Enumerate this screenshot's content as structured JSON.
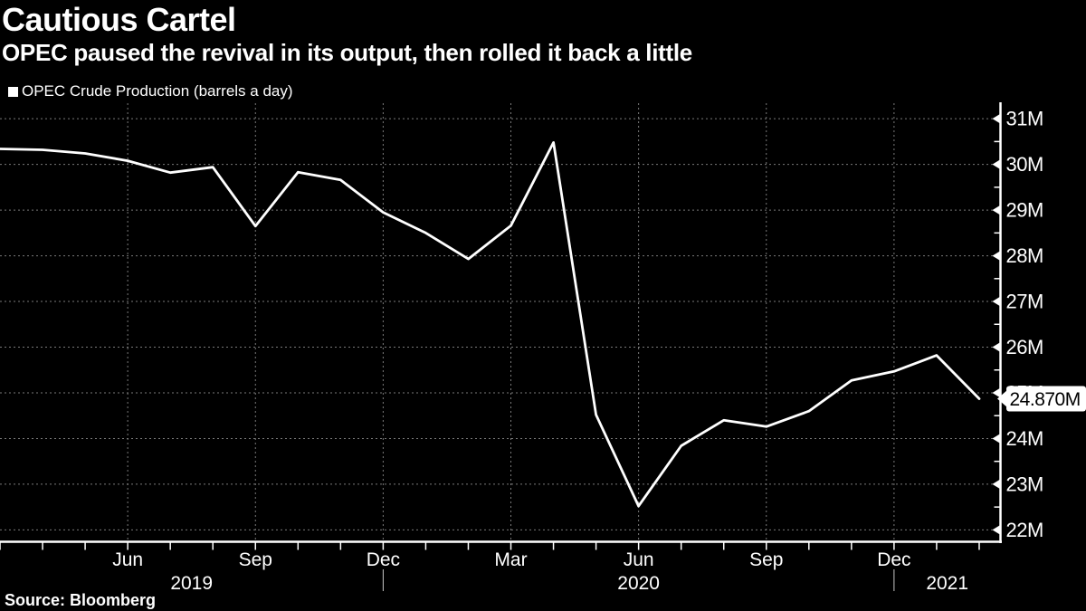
{
  "header": {
    "title": "Cautious Cartel",
    "subtitle": "OPEC paused the revival in its output, then rolled it back a little"
  },
  "legend": {
    "label": "OPEC Crude Production (barrels a day)",
    "marker": "square",
    "marker_color": "#ffffff"
  },
  "source": "Source: Bloomberg",
  "colors": {
    "background": "#000000",
    "text": "#ffffff",
    "line": "#ffffff",
    "grid": "#7a7a7a",
    "axis": "#ffffff",
    "tick": "#ffffff",
    "year_divider": "#c8c8c8",
    "callout_bg": "#ffffff",
    "callout_text": "#000000"
  },
  "chart_data": {
    "type": "line",
    "title": "Cautious Cartel",
    "subtitle": "OPEC paused the revival in its output, then rolled it back a little",
    "unit": "million barrels a day",
    "grid": true,
    "legend_position": "top-left",
    "series": [
      {
        "name": "OPEC Crude Production (barrels a day)",
        "x": [
          "Mar 2019",
          "Apr 2019",
          "May 2019",
          "Jun 2019",
          "Jul 2019",
          "Aug 2019",
          "Sep 2019",
          "Oct 2019",
          "Nov 2019",
          "Dec 2019",
          "Jan 2020",
          "Feb 2020",
          "Mar 2020",
          "Apr 2020",
          "May 2020",
          "Jun 2020",
          "Jul 2020",
          "Aug 2020",
          "Sep 2020",
          "Oct 2020",
          "Nov 2020",
          "Dec 2020",
          "Jan 2021",
          "Feb 2021"
        ],
        "values": [
          30.34,
          30.32,
          30.24,
          30.08,
          29.82,
          29.94,
          28.65,
          29.83,
          29.66,
          28.95,
          28.5,
          27.93,
          28.66,
          30.48,
          24.52,
          22.52,
          23.84,
          24.4,
          24.26,
          24.6,
          25.27,
          25.47,
          25.82,
          24.87
        ]
      }
    ],
    "ylim": [
      21.74,
      31.34
    ],
    "x_range": [
      0,
      23.5
    ],
    "yticks": [
      {
        "v": 22,
        "label": "22M"
      },
      {
        "v": 23,
        "label": "23M"
      },
      {
        "v": 24,
        "label": "24M"
      },
      {
        "v": 25,
        "label": "25M"
      },
      {
        "v": 26,
        "label": "26M"
      },
      {
        "v": 27,
        "label": "27M"
      },
      {
        "v": 28,
        "label": "28M"
      },
      {
        "v": 29,
        "label": "29M"
      },
      {
        "v": 30,
        "label": "30M"
      },
      {
        "v": 31,
        "label": "31M"
      }
    ],
    "y_minor_ticks": [
      22.5,
      23.5,
      24.5,
      25.5,
      26.5,
      27.5,
      28.5,
      29.5,
      30.5
    ],
    "xticks": [
      {
        "i": 3,
        "label": "Jun"
      },
      {
        "i": 6,
        "label": "Sep"
      },
      {
        "i": 9,
        "label": "Dec"
      },
      {
        "i": 12,
        "label": "Mar"
      },
      {
        "i": 15,
        "label": "Jun"
      },
      {
        "i": 18,
        "label": "Sep"
      },
      {
        "i": 21,
        "label": "Dec"
      }
    ],
    "year_labels": [
      {
        "i": 4.5,
        "label": "2019"
      },
      {
        "i": 15.0,
        "label": "2020"
      },
      {
        "i": 22.25,
        "label": "2021"
      }
    ],
    "year_dividers": [
      9,
      21
    ],
    "callout": {
      "value": 24.87,
      "label": "24.870M"
    }
  }
}
